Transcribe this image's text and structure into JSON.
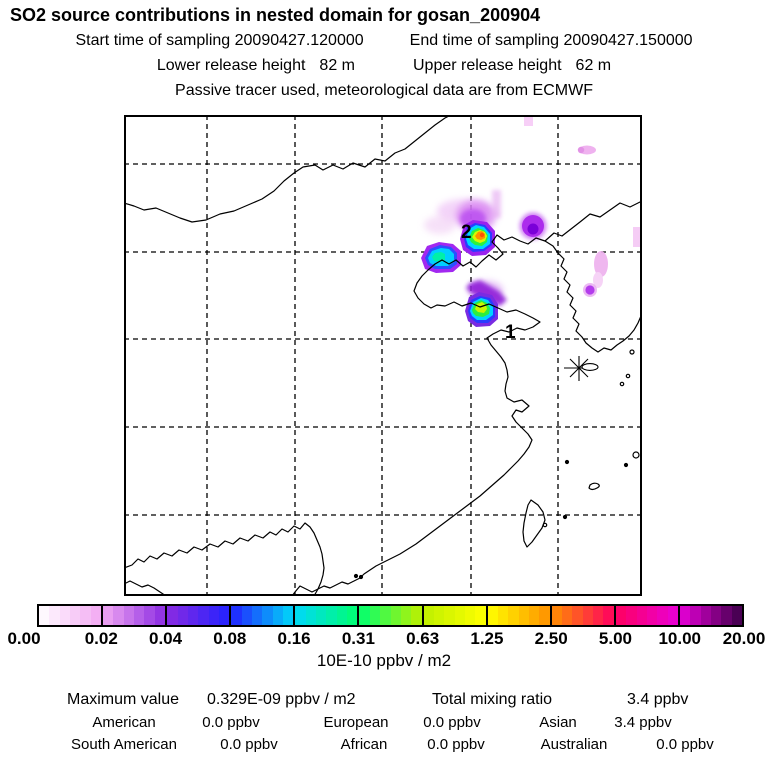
{
  "header": {
    "title": "SO2 source contributions in nested domain for gosan_200904",
    "start_time": "Start time of sampling 20090427.120000",
    "end_time": "End time of sampling 20090427.150000",
    "lower_release_label": "Lower release height",
    "lower_release_value": "82 m",
    "upper_release_label": "Upper release height",
    "upper_release_value": "62 m",
    "tracer_note": "Passive tracer used, meteorological data are from ECMWF"
  },
  "map": {
    "source_labels": [
      "2",
      "1"
    ],
    "station_marker": "asterisk"
  },
  "chart_data": {
    "type": "heatmap",
    "title": "SO2 source contributions in nested domain for gosan_200904",
    "colorbar": {
      "tick_labels": [
        "0.00",
        "0.02",
        "0.04",
        "0.08",
        "0.16",
        "0.31",
        "0.63",
        "1.25",
        "2.50",
        "5.00",
        "10.00",
        "20.00"
      ],
      "tick_values": [
        0.0,
        0.02,
        0.04,
        0.08,
        0.16,
        0.31,
        0.63,
        1.25,
        2.5,
        5.0,
        10.0,
        20.0
      ],
      "anchor_colors": [
        "#ffffff",
        "#f2a8f2",
        "#8a2be2",
        "#2222ff",
        "#00d8f8",
        "#00ff70",
        "#bff000",
        "#ffff00",
        "#ff9000",
        "#ff0060",
        "#e800d8",
        "#3c0048"
      ],
      "units_label": "10E-10 ppbv / m2",
      "orientation": "horizontal"
    },
    "map_source_labels": [
      "1",
      "2"
    ],
    "grid": "dashed lat/lon grid, 5 vertical x 5 horizontal lines",
    "maximum_value": "0.329E-09 ppbv / m2",
    "total_mixing_ratio": "3.4 ppbv",
    "contributions_ppbv": {
      "American": 0.0,
      "European": 0.0,
      "Asian": 3.4,
      "South American": 0.0,
      "African": 0.0,
      "Australian": 0.0
    }
  },
  "stats": {
    "maximum_label": "Maximum value",
    "maximum_value": "0.329E-09 ppbv / m2",
    "total_label": "Total mixing ratio",
    "total_value": "3.4 ppbv",
    "continents": [
      {
        "label": "American",
        "value": "0.0 ppbv"
      },
      {
        "label": "European",
        "value": "0.0 ppbv"
      },
      {
        "label": "Asian",
        "value": "3.4 ppbv"
      },
      {
        "label": "South American",
        "value": "0.0 ppbv"
      },
      {
        "label": "African",
        "value": "0.0 ppbv"
      },
      {
        "label": "Australian",
        "value": "0.0 ppbv"
      }
    ]
  }
}
